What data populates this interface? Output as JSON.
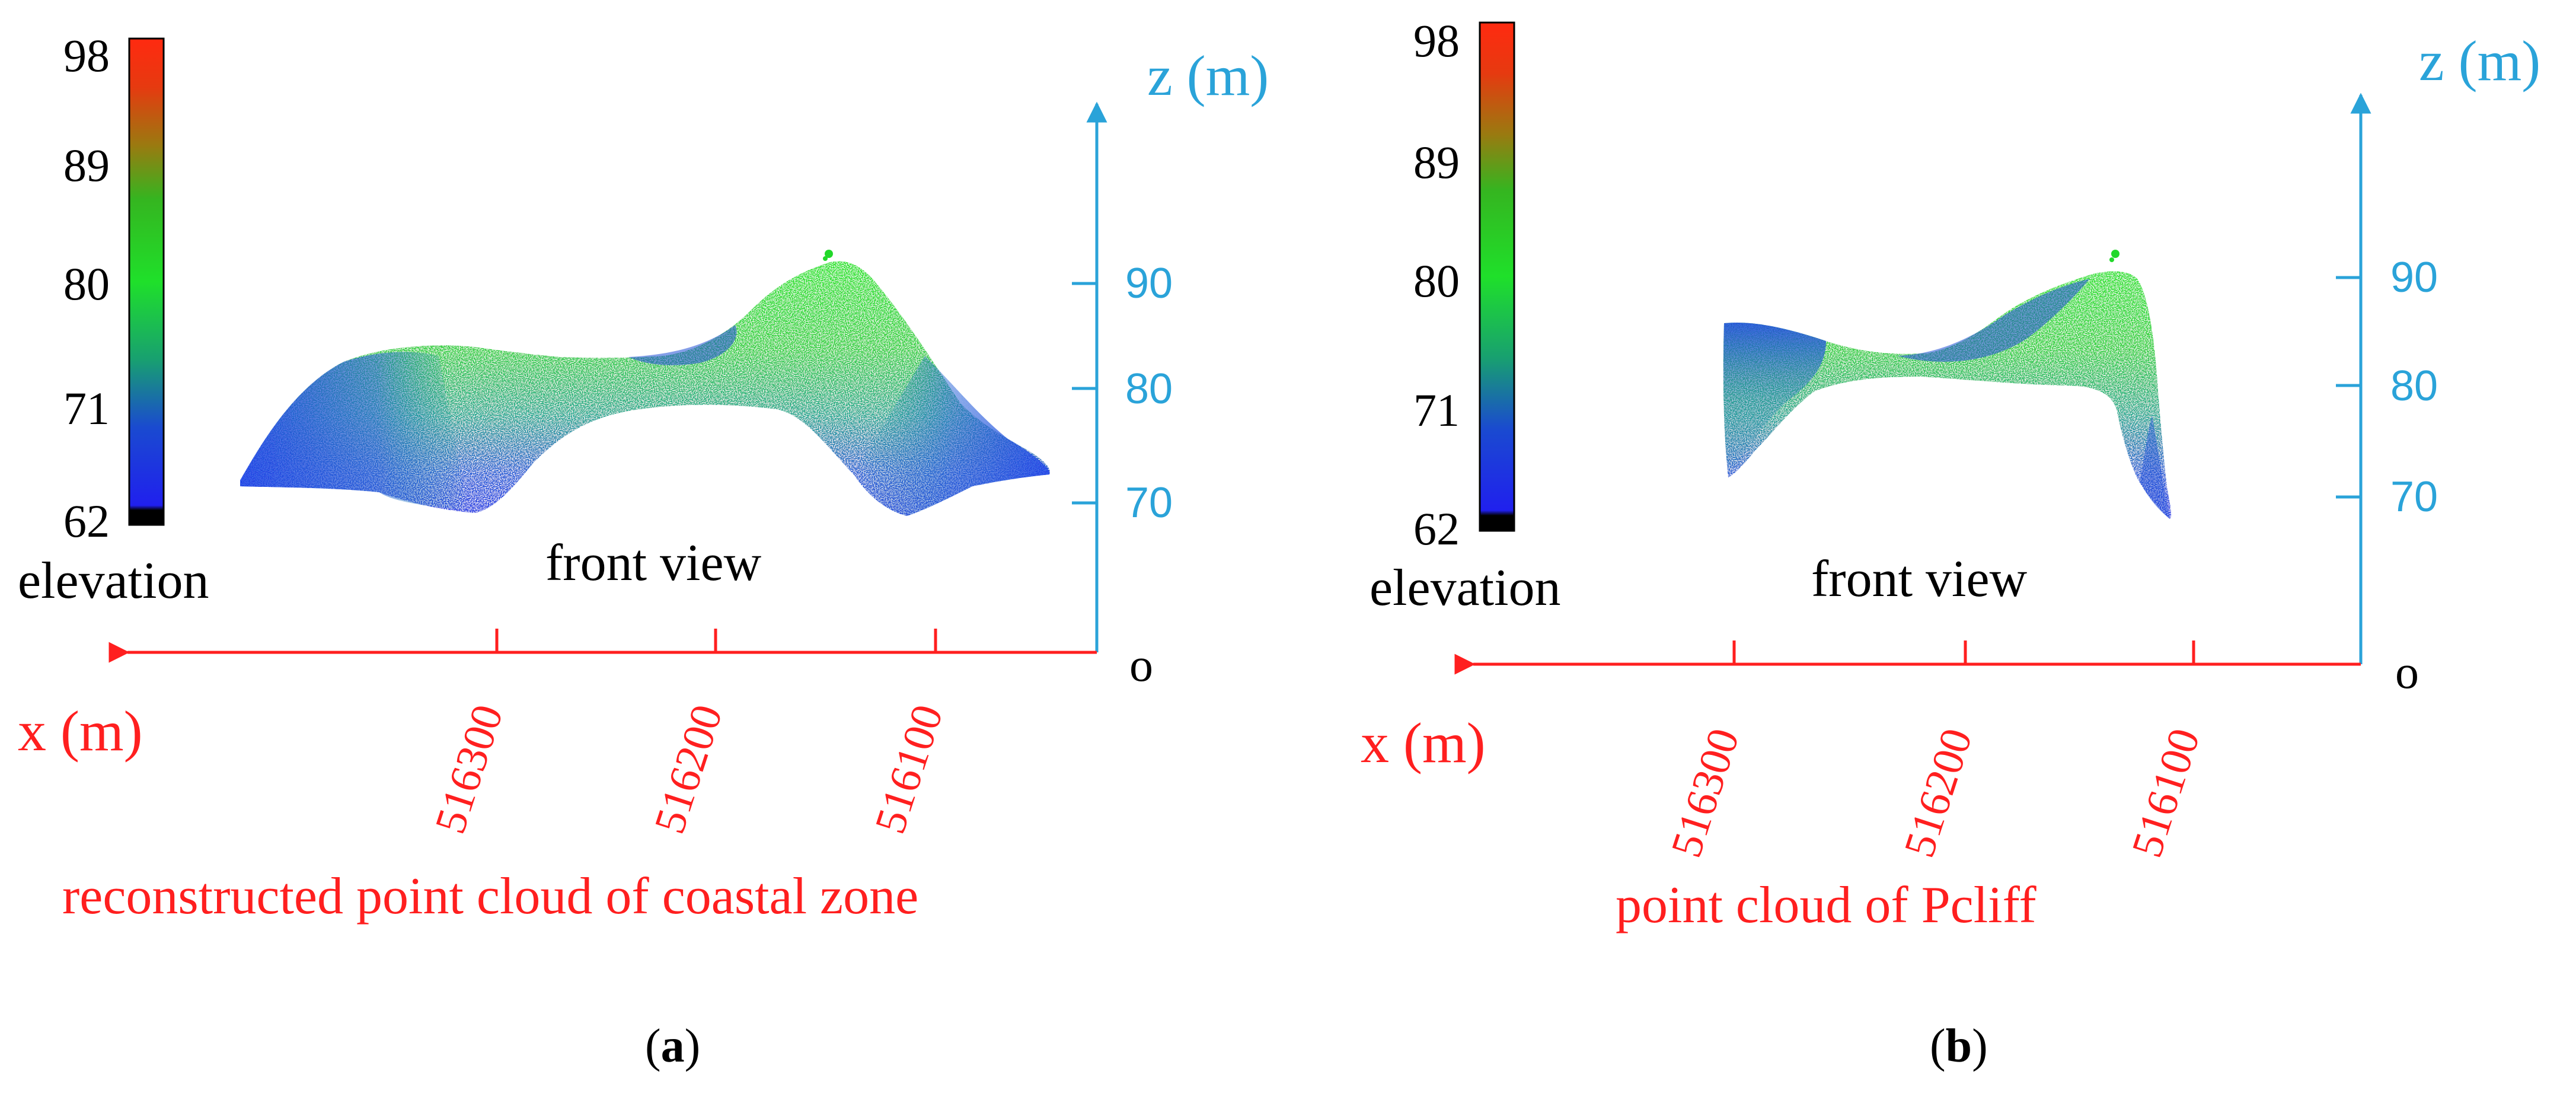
{
  "colors": {
    "x_axis": "#ff1f1f",
    "z_axis": "#2aa3d9",
    "text": "#000000"
  },
  "colorbar": {
    "ticks": [
      "98",
      "89",
      "80",
      "71",
      "62"
    ],
    "label": "elevation",
    "stops": [
      "#ff2a10",
      "#1fcc2a",
      "#2020ee",
      "#000000"
    ]
  },
  "panels": [
    {
      "id": "a",
      "view_label": "front view",
      "z_axis": {
        "title": "z (m)",
        "ticks": [
          "90",
          "80",
          "70"
        ]
      },
      "x_axis": {
        "title": "x (m)",
        "ticks": [
          "516300",
          "516200",
          "516100"
        ]
      },
      "origin_label": "o",
      "caption": "reconstructed point cloud of coastal zone",
      "panel_label": {
        "open": "(",
        "letter": "a",
        "close": ")"
      }
    },
    {
      "id": "b",
      "view_label": "front view",
      "z_axis": {
        "title": "z (m)",
        "ticks": [
          "90",
          "80",
          "70"
        ]
      },
      "x_axis": {
        "title": "x (m)",
        "ticks": [
          "516300",
          "516200",
          "516100"
        ]
      },
      "origin_label": "o",
      "caption": "point cloud of Pcliff",
      "panel_label": {
        "open": "(",
        "letter": "b",
        "close": ")"
      }
    }
  ]
}
